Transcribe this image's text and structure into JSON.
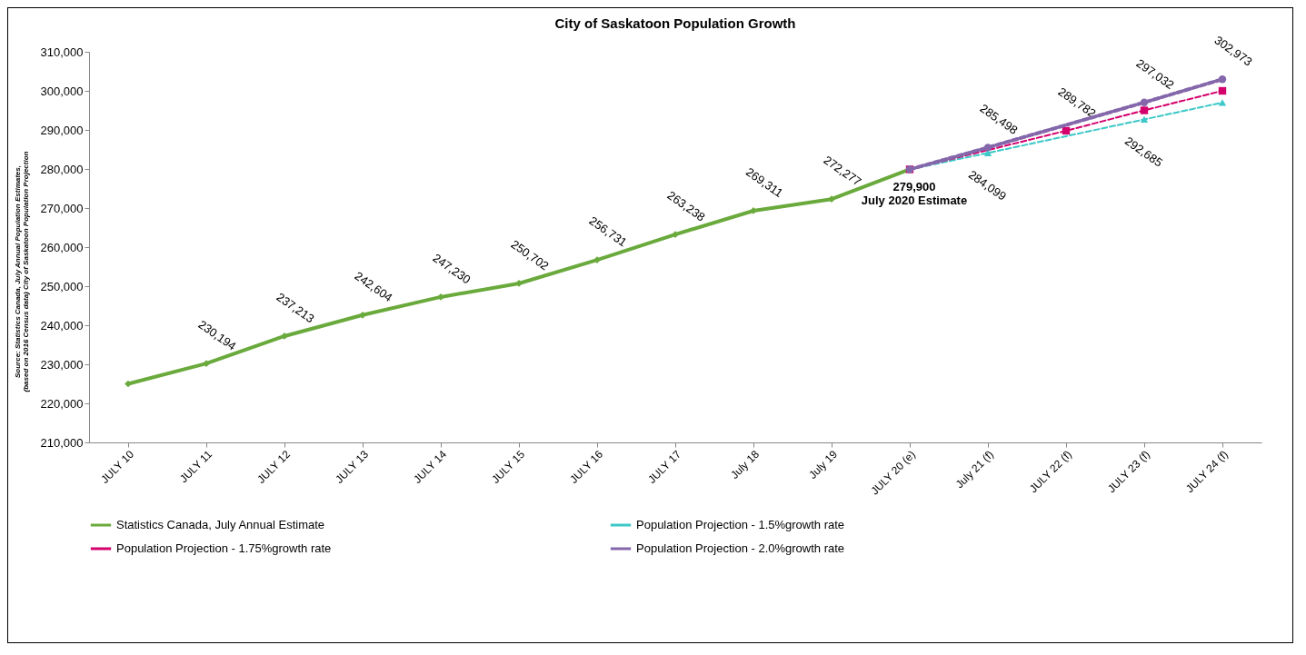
{
  "chart_data": {
    "type": "line",
    "title": "City of Saskatoon  Population  Growth",
    "categories": [
      "JULY 10",
      "JULY 11",
      "JULY 12",
      "JULY 13",
      "JULY 14",
      "JULY 15",
      "JULY 16",
      "JULY 17",
      "July 18",
      "July 19",
      "JULY 20 (e)",
      "July 21 (f)",
      "JULY 22 (f)",
      "JULY 23 (f)",
      "JULY 24 (f)"
    ],
    "series": [
      {
        "name": "Statistics Canada, July Annual Estimate",
        "color": "#6aaa3c",
        "marker": "diamond",
        "line_style": "solid",
        "values": [
          225000,
          230194,
          237213,
          242604,
          247230,
          250702,
          256731,
          263238,
          269311,
          272277,
          279900,
          null,
          null,
          null,
          null
        ],
        "value_labels": [
          null,
          "230,194",
          "237,213",
          "242,604",
          "247,230",
          "250,702",
          "256,731",
          "263,238",
          "269,311",
          "272,277",
          null,
          null,
          null,
          null,
          null
        ]
      },
      {
        "name": "Population Projection - 1.5%growth rate",
        "color": "#3cc8c8",
        "marker": "triangle",
        "line_style": "dashed",
        "values": [
          null,
          null,
          null,
          null,
          null,
          null,
          null,
          null,
          null,
          null,
          279900,
          284099,
          null,
          292685,
          297000
        ],
        "value_labels": [
          null,
          null,
          null,
          null,
          null,
          null,
          null,
          null,
          null,
          null,
          null,
          "284,099",
          null,
          "292,685",
          null
        ]
      },
      {
        "name": "Population Projection - 1.75%growth rate",
        "color": "#d4006c",
        "marker": "square",
        "line_style": "dashed",
        "values": [
          null,
          null,
          null,
          null,
          null,
          null,
          null,
          null,
          null,
          null,
          279900,
          null,
          289782,
          295000,
          300000
        ],
        "value_labels": [
          null,
          null,
          null,
          null,
          null,
          null,
          null,
          null,
          null,
          null,
          null,
          null,
          "289,782",
          null,
          null
        ]
      },
      {
        "name": "Population Projection - 2.0%growth rate",
        "color": "#8466aa",
        "marker": "circle",
        "line_style": "dashed",
        "values": [
          null,
          null,
          null,
          null,
          null,
          null,
          null,
          null,
          null,
          null,
          279900,
          285498,
          null,
          297032,
          302973
        ],
        "value_labels": [
          null,
          null,
          null,
          null,
          null,
          null,
          null,
          null,
          null,
          null,
          null,
          "285,498",
          null,
          "297,032",
          "302,973"
        ]
      }
    ],
    "ylim": [
      210000,
      310000
    ],
    "yticks": [
      {
        "value": 210000,
        "label": "210,000"
      },
      {
        "value": 220000,
        "label": "220,000"
      },
      {
        "value": 230000,
        "label": "230,000"
      },
      {
        "value": 240000,
        "label": "240,000"
      },
      {
        "value": 250000,
        "label": "250,000"
      },
      {
        "value": 260000,
        "label": "260,000"
      },
      {
        "value": 270000,
        "label": "270,000"
      },
      {
        "value": 280000,
        "label": "280,000"
      },
      {
        "value": 290000,
        "label": "290,000"
      },
      {
        "value": 300000,
        "label": "300,000"
      },
      {
        "value": 310000,
        "label": "310,000"
      }
    ],
    "grid": false,
    "legend": "bottom",
    "annotations": [
      {
        "text": "279,900\nJuly 2020 Estimate",
        "x": "JULY 20 (e)",
        "y": 279900
      },
      "Source: Statistics Canada, July Annual Population Estimates,\n(based on 2016 Census data) City of Saskatoon Population Projection"
    ]
  }
}
